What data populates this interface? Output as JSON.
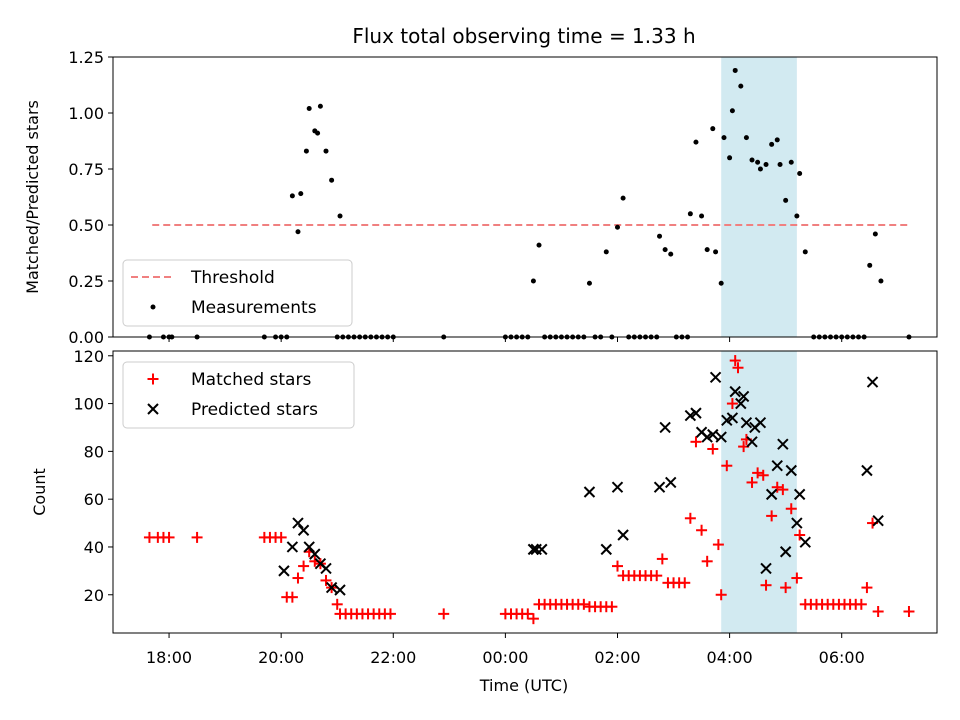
{
  "chart_data": [
    {
      "type": "scatter",
      "title": "Flux total observing time = 1.33 h",
      "xlabel": "",
      "ylabel": "Matched/Predicted stars",
      "ylim": [
        0,
        1.25
      ],
      "xlim_hours_from_midnight": [
        -7.0,
        7.7
      ],
      "yticks": [
        0.0,
        0.25,
        0.5,
        0.75,
        1.0,
        1.25
      ],
      "ytick_labels": [
        "0.00",
        "0.25",
        "0.50",
        "0.75",
        "1.00",
        "1.25"
      ],
      "grid": false,
      "legend_position": "lower-left",
      "highlight_span_hours": [
        3.85,
        5.2
      ],
      "highlight_color": "#add8e6",
      "threshold": {
        "name": "Threshold",
        "value": 0.5,
        "x_range": [
          -6.3,
          7.2
        ],
        "color": "#f08080",
        "style": "dashed"
      },
      "series": [
        {
          "name": "Measurements",
          "color": "#000000",
          "marker": "dot",
          "points": [
            [
              -6.35,
              0
            ],
            [
              -6.1,
              0
            ],
            [
              -6.0,
              0
            ],
            [
              -5.95,
              0
            ],
            [
              -5.5,
              0
            ],
            [
              -4.3,
              0
            ],
            [
              -4.1,
              0
            ],
            [
              -4.0,
              0
            ],
            [
              -3.9,
              0
            ],
            [
              -3.8,
              0.63
            ],
            [
              -3.7,
              0.47
            ],
            [
              -3.65,
              0.64
            ],
            [
              -3.55,
              0.83
            ],
            [
              -3.5,
              1.02
            ],
            [
              -3.4,
              0.92
            ],
            [
              -3.35,
              0.91
            ],
            [
              -3.3,
              1.03
            ],
            [
              -3.2,
              0.83
            ],
            [
              -3.1,
              0.7
            ],
            [
              -3.0,
              0
            ],
            [
              -2.95,
              0.54
            ],
            [
              -2.9,
              0
            ],
            [
              -2.8,
              0
            ],
            [
              -2.7,
              0
            ],
            [
              -2.6,
              0
            ],
            [
              -2.5,
              0
            ],
            [
              -2.4,
              0
            ],
            [
              -2.3,
              0
            ],
            [
              -2.2,
              0
            ],
            [
              -2.1,
              0
            ],
            [
              -2.0,
              0
            ],
            [
              -1.1,
              0
            ],
            [
              0.0,
              0
            ],
            [
              0.1,
              0
            ],
            [
              0.2,
              0
            ],
            [
              0.3,
              0
            ],
            [
              0.4,
              0
            ],
            [
              0.5,
              0.25
            ],
            [
              0.6,
              0.41
            ],
            [
              0.7,
              0
            ],
            [
              0.8,
              0
            ],
            [
              0.9,
              0
            ],
            [
              1.0,
              0
            ],
            [
              1.1,
              0
            ],
            [
              1.2,
              0
            ],
            [
              1.3,
              0
            ],
            [
              1.4,
              0
            ],
            [
              1.5,
              0.24
            ],
            [
              1.6,
              0
            ],
            [
              1.7,
              0
            ],
            [
              1.8,
              0.38
            ],
            [
              1.9,
              0
            ],
            [
              2.0,
              0.49
            ],
            [
              2.1,
              0.62
            ],
            [
              2.2,
              0
            ],
            [
              2.3,
              0
            ],
            [
              2.4,
              0
            ],
            [
              2.5,
              0
            ],
            [
              2.6,
              0
            ],
            [
              2.7,
              0
            ],
            [
              2.75,
              0.45
            ],
            [
              2.85,
              0.39
            ],
            [
              2.95,
              0.37
            ],
            [
              3.05,
              0
            ],
            [
              3.15,
              0
            ],
            [
              3.25,
              0
            ],
            [
              3.3,
              0.55
            ],
            [
              3.4,
              0.87
            ],
            [
              3.5,
              0.54
            ],
            [
              3.6,
              0.39
            ],
            [
              3.7,
              0.93
            ],
            [
              3.75,
              0.38
            ],
            [
              3.85,
              0.24
            ],
            [
              3.9,
              0.89
            ],
            [
              4.0,
              0.8
            ],
            [
              4.05,
              1.01
            ],
            [
              4.1,
              1.19
            ],
            [
              4.2,
              1.12
            ],
            [
              4.3,
              0.89
            ],
            [
              4.4,
              0.79
            ],
            [
              4.5,
              0.78
            ],
            [
              4.55,
              0.75
            ],
            [
              4.65,
              0.77
            ],
            [
              4.75,
              0.86
            ],
            [
              4.85,
              0.88
            ],
            [
              4.9,
              0.77
            ],
            [
              5.0,
              0.61
            ],
            [
              5.1,
              0.78
            ],
            [
              5.2,
              0.54
            ],
            [
              5.25,
              0.73
            ],
            [
              5.35,
              0.38
            ],
            [
              5.5,
              0
            ],
            [
              5.6,
              0
            ],
            [
              5.7,
              0
            ],
            [
              5.8,
              0
            ],
            [
              5.9,
              0
            ],
            [
              6.0,
              0
            ],
            [
              6.1,
              0
            ],
            [
              6.2,
              0
            ],
            [
              6.3,
              0
            ],
            [
              6.4,
              0
            ],
            [
              6.5,
              0.32
            ],
            [
              6.6,
              0.46
            ],
            [
              6.7,
              0.25
            ],
            [
              7.2,
              0
            ]
          ]
        }
      ]
    },
    {
      "type": "scatter",
      "title": "",
      "xlabel": "Time (UTC)",
      "ylabel": "Count",
      "ylim": [
        4,
        122
      ],
      "xlim_hours_from_midnight": [
        -7.0,
        7.7
      ],
      "yticks": [
        20,
        40,
        60,
        80,
        100,
        120
      ],
      "ytick_labels": [
        "20",
        "40",
        "60",
        "80",
        "100",
        "120"
      ],
      "xticks_hours_from_midnight": [
        -6,
        -4,
        -2,
        0,
        2,
        4,
        6
      ],
      "xtick_labels": [
        "18:00",
        "20:00",
        "22:00",
        "00:00",
        "02:00",
        "04:00",
        "06:00"
      ],
      "grid": false,
      "legend_position": "top-left",
      "highlight_span_hours": [
        3.85,
        5.2
      ],
      "highlight_color": "#add8e6",
      "series": [
        {
          "name": "Matched stars",
          "color": "#ff0000",
          "marker": "plus",
          "points": [
            [
              -6.35,
              44
            ],
            [
              -6.2,
              44
            ],
            [
              -6.1,
              44
            ],
            [
              -6.0,
              44
            ],
            [
              -5.5,
              44
            ],
            [
              -4.3,
              44
            ],
            [
              -4.2,
              44
            ],
            [
              -4.1,
              44
            ],
            [
              -4.0,
              44
            ],
            [
              -3.9,
              19
            ],
            [
              -3.8,
              19
            ],
            [
              -3.7,
              27
            ],
            [
              -3.6,
              32
            ],
            [
              -3.5,
              38
            ],
            [
              -3.4,
              34
            ],
            [
              -3.3,
              33
            ],
            [
              -3.2,
              26
            ],
            [
              -3.1,
              23
            ],
            [
              -3.0,
              16
            ],
            [
              -2.95,
              12
            ],
            [
              -2.85,
              12
            ],
            [
              -2.75,
              12
            ],
            [
              -2.65,
              12
            ],
            [
              -2.55,
              12
            ],
            [
              -2.45,
              12
            ],
            [
              -2.35,
              12
            ],
            [
              -2.25,
              12
            ],
            [
              -2.15,
              12
            ],
            [
              -2.05,
              12
            ],
            [
              -1.1,
              12
            ],
            [
              0.0,
              12
            ],
            [
              0.1,
              12
            ],
            [
              0.2,
              12
            ],
            [
              0.3,
              12
            ],
            [
              0.4,
              12
            ],
            [
              0.5,
              10
            ],
            [
              0.6,
              16
            ],
            [
              0.7,
              16
            ],
            [
              0.8,
              16
            ],
            [
              0.9,
              16
            ],
            [
              1.0,
              16
            ],
            [
              1.1,
              16
            ],
            [
              1.2,
              16
            ],
            [
              1.3,
              16
            ],
            [
              1.4,
              16
            ],
            [
              1.5,
              15
            ],
            [
              1.6,
              15
            ],
            [
              1.7,
              15
            ],
            [
              1.8,
              15
            ],
            [
              1.9,
              15
            ],
            [
              2.0,
              32
            ],
            [
              2.1,
              28
            ],
            [
              2.2,
              28
            ],
            [
              2.3,
              28
            ],
            [
              2.4,
              28
            ],
            [
              2.5,
              28
            ],
            [
              2.6,
              28
            ],
            [
              2.7,
              28
            ],
            [
              2.8,
              35
            ],
            [
              2.9,
              25
            ],
            [
              3.0,
              25
            ],
            [
              3.1,
              25
            ],
            [
              3.2,
              25
            ],
            [
              3.3,
              52
            ],
            [
              3.4,
              84
            ],
            [
              3.5,
              47
            ],
            [
              3.6,
              34
            ],
            [
              3.7,
              81
            ],
            [
              3.8,
              41
            ],
            [
              3.85,
              20
            ],
            [
              3.95,
              74
            ],
            [
              4.05,
              100
            ],
            [
              4.1,
              118
            ],
            [
              4.15,
              115
            ],
            [
              4.25,
              82
            ],
            [
              4.3,
              85
            ],
            [
              4.4,
              67
            ],
            [
              4.5,
              71
            ],
            [
              4.6,
              70
            ],
            [
              4.65,
              24
            ],
            [
              4.75,
              53
            ],
            [
              4.85,
              65
            ],
            [
              4.95,
              64
            ],
            [
              5.0,
              23
            ],
            [
              5.1,
              56
            ],
            [
              5.2,
              27
            ],
            [
              5.25,
              45
            ],
            [
              5.35,
              16
            ],
            [
              5.45,
              16
            ],
            [
              5.55,
              16
            ],
            [
              5.65,
              16
            ],
            [
              5.75,
              16
            ],
            [
              5.85,
              16
            ],
            [
              5.95,
              16
            ],
            [
              6.05,
              16
            ],
            [
              6.15,
              16
            ],
            [
              6.25,
              16
            ],
            [
              6.35,
              16
            ],
            [
              6.45,
              23
            ],
            [
              6.55,
              50
            ],
            [
              6.65,
              13
            ],
            [
              7.2,
              13
            ]
          ]
        },
        {
          "name": "Predicted stars",
          "color": "#000000",
          "marker": "x",
          "points": [
            [
              -3.95,
              30
            ],
            [
              -3.8,
              40
            ],
            [
              -3.7,
              50
            ],
            [
              -3.6,
              47
            ],
            [
              -3.5,
              40
            ],
            [
              -3.4,
              37
            ],
            [
              -3.3,
              33
            ],
            [
              -3.2,
              31
            ],
            [
              -3.1,
              23
            ],
            [
              -2.95,
              22
            ],
            [
              0.5,
              39
            ],
            [
              0.55,
              39
            ],
            [
              0.65,
              39
            ],
            [
              1.5,
              63
            ],
            [
              2.0,
              65
            ],
            [
              2.1,
              45
            ],
            [
              1.8,
              39
            ],
            [
              2.75,
              65
            ],
            [
              2.85,
              90
            ],
            [
              2.95,
              67
            ],
            [
              3.3,
              95
            ],
            [
              3.4,
              96
            ],
            [
              3.5,
              88
            ],
            [
              3.6,
              86
            ],
            [
              3.7,
              87
            ],
            [
              3.75,
              111
            ],
            [
              3.85,
              86
            ],
            [
              3.95,
              93
            ],
            [
              4.05,
              94
            ],
            [
              4.1,
              105
            ],
            [
              4.2,
              100
            ],
            [
              4.25,
              103
            ],
            [
              4.3,
              92
            ],
            [
              4.4,
              84
            ],
            [
              4.45,
              90
            ],
            [
              4.55,
              92
            ],
            [
              4.65,
              31
            ],
            [
              4.75,
              62
            ],
            [
              4.85,
              74
            ],
            [
              4.95,
              83
            ],
            [
              5.0,
              38
            ],
            [
              5.1,
              72
            ],
            [
              5.2,
              50
            ],
            [
              5.25,
              62
            ],
            [
              5.35,
              42
            ],
            [
              6.45,
              72
            ],
            [
              6.55,
              109
            ],
            [
              6.65,
              51
            ]
          ]
        }
      ]
    }
  ]
}
